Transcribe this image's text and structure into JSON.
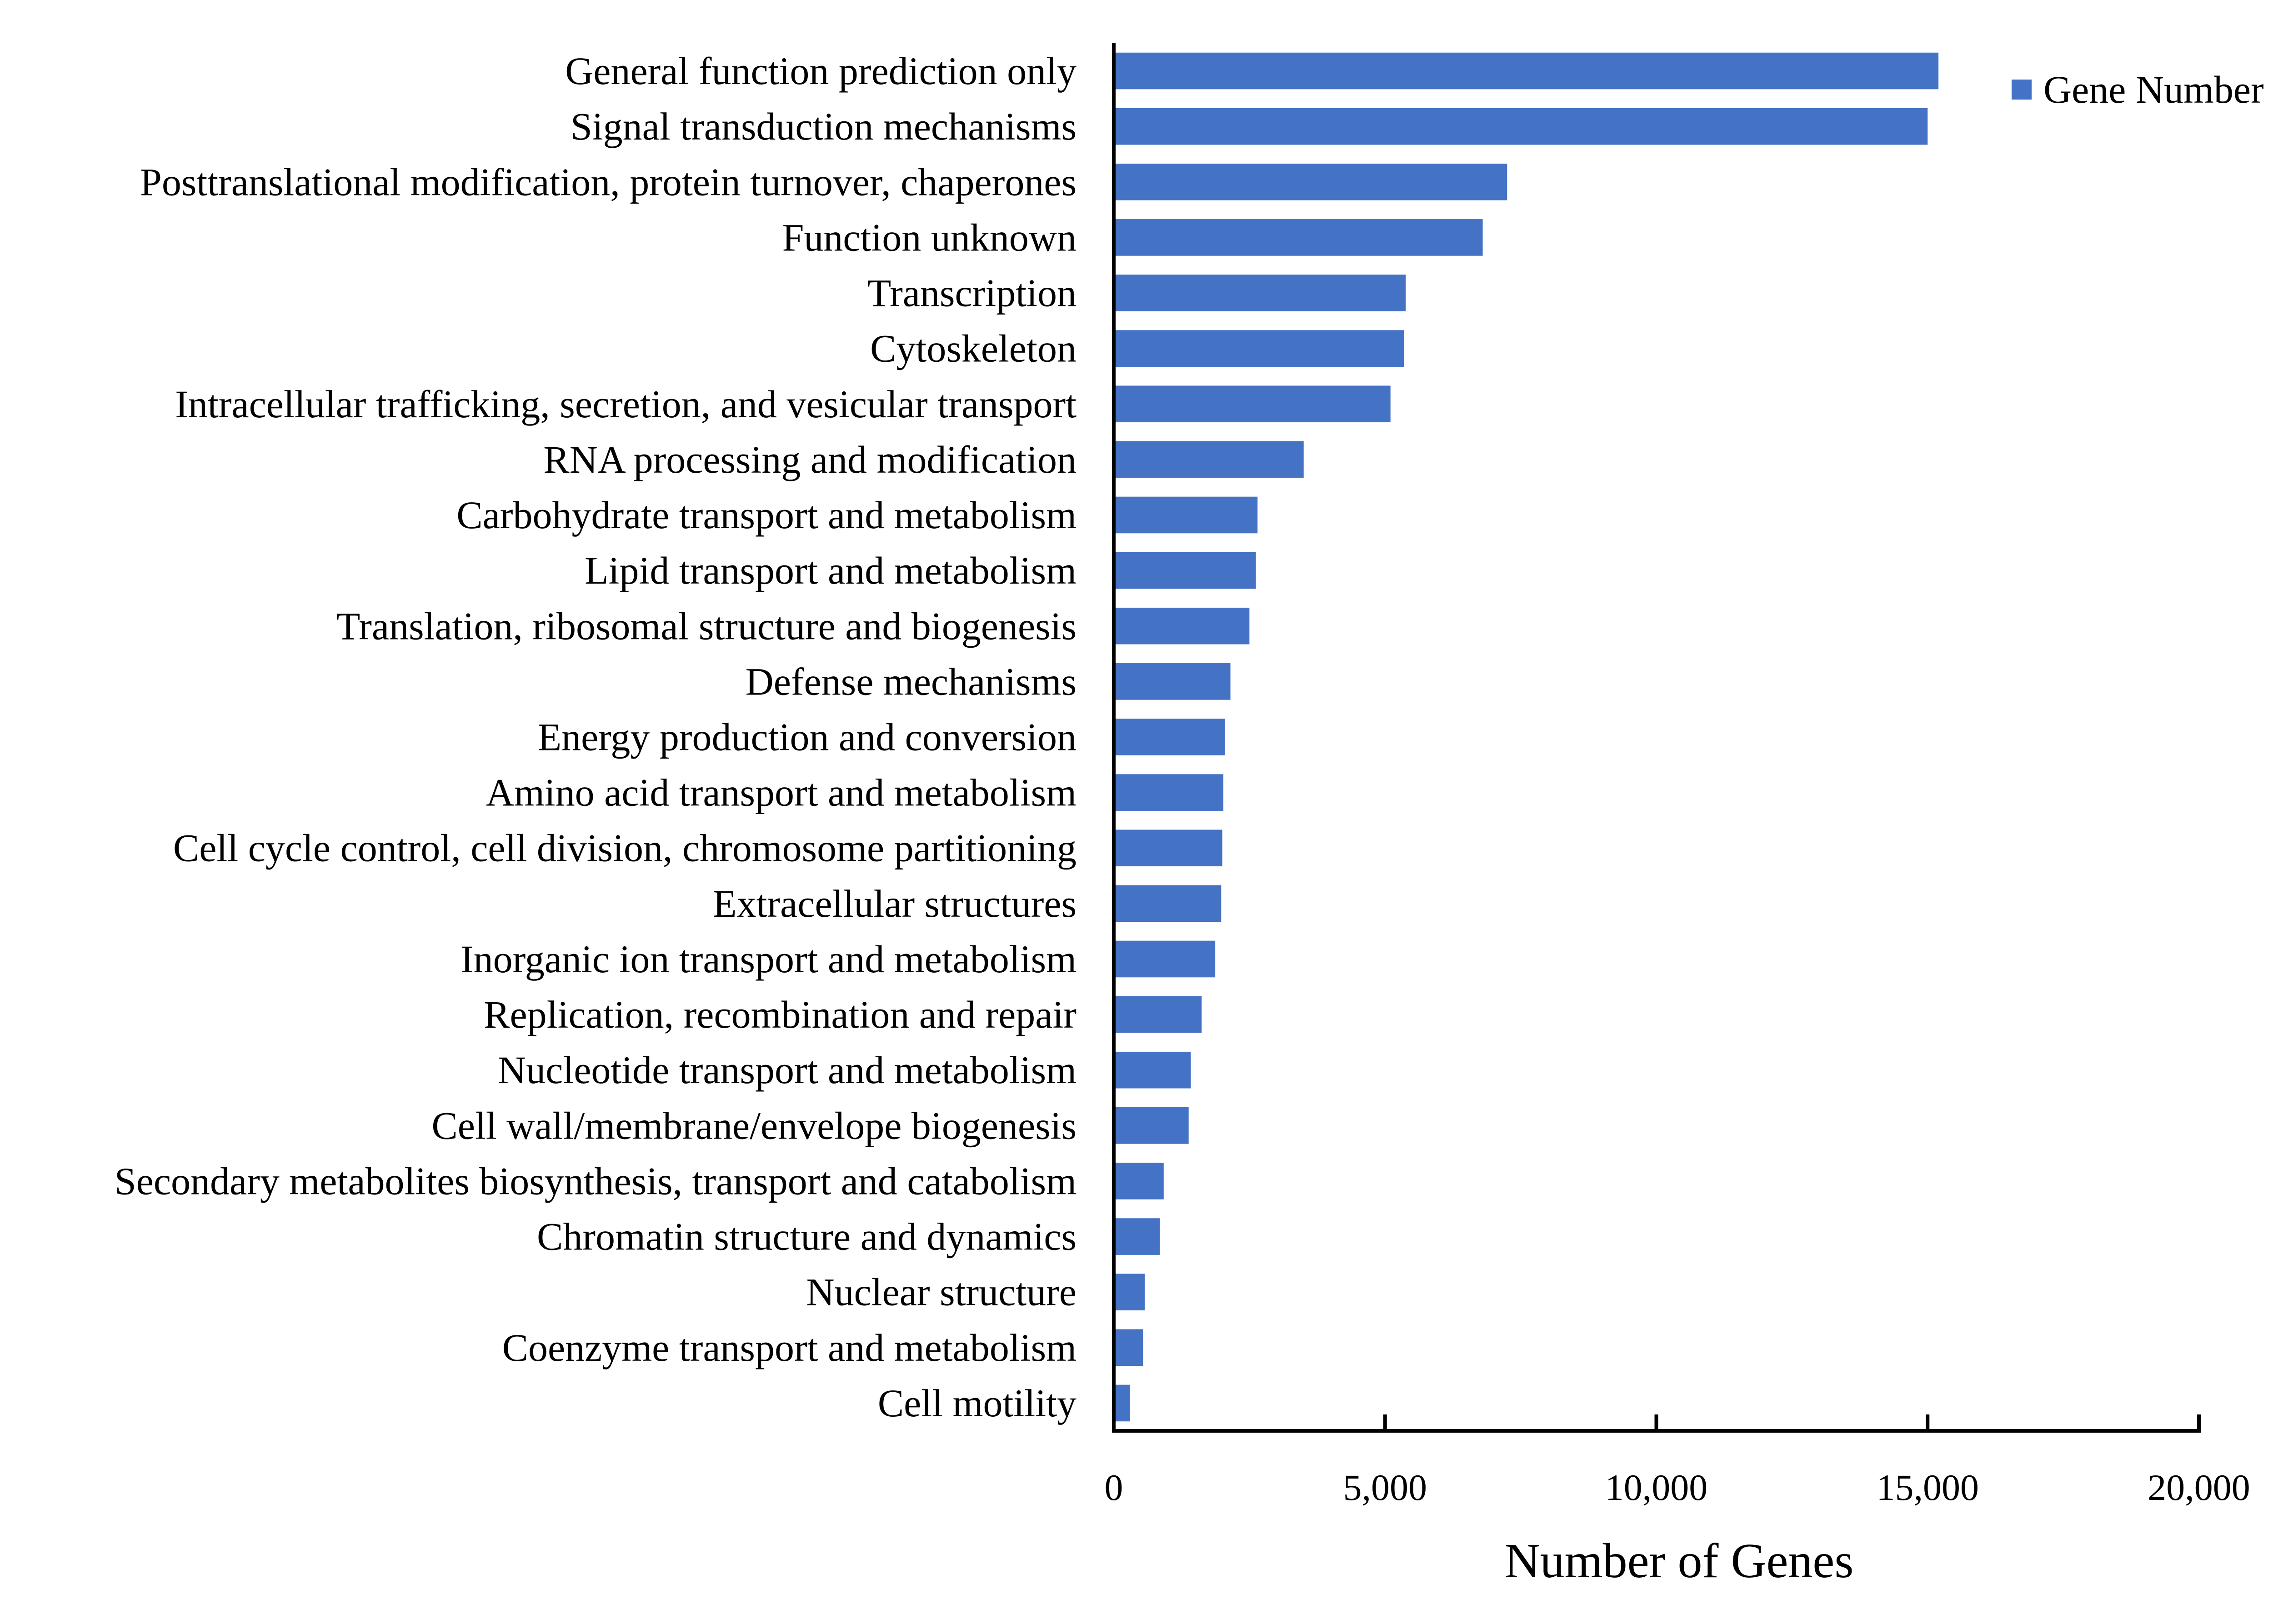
{
  "chart_data": {
    "type": "bar",
    "orientation": "horizontal",
    "title": "",
    "xlabel": "Number of Genes",
    "ylabel": "",
    "xlim": [
      0,
      20000
    ],
    "x_ticks": [
      0,
      5000,
      10000,
      15000,
      20000
    ],
    "x_tick_labels": [
      "0",
      "5,000",
      "10,000",
      "15,000",
      "20,000"
    ],
    "grid": false,
    "legend_position": "top-right",
    "categories": [
      "General function prediction only",
      "Signal transduction mechanisms",
      "Posttranslational modification, protein turnover, chaperones",
      "Function unknown",
      "Transcription",
      "Cytoskeleton",
      "Intracellular trafficking, secretion, and vesicular transport",
      "RNA processing and modification",
      "Carbohydrate transport and metabolism",
      "Lipid transport and metabolism",
      "Translation, ribosomal structure and biogenesis",
      "Defense mechanisms",
      "Energy production and conversion",
      "Amino acid transport and metabolism",
      "Cell cycle control, cell division, chromosome partitioning",
      "Extracellular structures",
      "Inorganic ion transport and metabolism",
      "Replication, recombination and repair",
      "Nucleotide transport and metabolism",
      "Cell wall/membrane/envelope biogenesis",
      "Secondary metabolites biosynthesis, transport and catabolism",
      "Chromatin structure and dynamics",
      "Nuclear structure",
      "Coenzyme transport and metabolism",
      "Cell motility"
    ],
    "series": [
      {
        "name": "Gene Number",
        "color": "#4472C4",
        "values": [
          15200,
          15000,
          7250,
          6800,
          5380,
          5350,
          5100,
          3500,
          2650,
          2620,
          2500,
          2150,
          2050,
          2020,
          2000,
          1980,
          1870,
          1620,
          1420,
          1380,
          920,
          850,
          570,
          540,
          300
        ]
      }
    ]
  }
}
